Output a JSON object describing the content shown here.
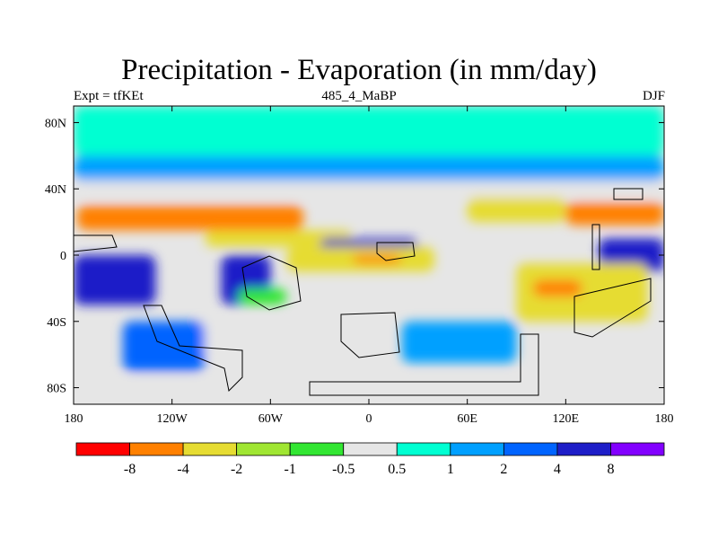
{
  "title": "Precipitation - Evaporation (in mm/day)",
  "left_string": "Expt = tfKEt",
  "center_string": "485_4_MaBP",
  "right_string": "DJF",
  "chart_data": {
    "type": "heatmap",
    "title": "Precipitation - Evaporation (in mm/day)",
    "variable": "Precipitation - Evaporation",
    "units": "mm/day",
    "experiment": "tfKEt",
    "period": "485_4_MaBP",
    "season": "DJF",
    "x_ticks": [
      "180",
      "120W",
      "60W",
      "0",
      "60E",
      "120E",
      "180"
    ],
    "x_values": [
      -180,
      -120,
      -60,
      0,
      60,
      120,
      180
    ],
    "y_ticks": [
      "80N",
      "40N",
      "0",
      "40S",
      "80S"
    ],
    "y_values": [
      80,
      40,
      0,
      -40,
      -80
    ],
    "xlim": [
      -180,
      180
    ],
    "ylim": [
      -90,
      90
    ],
    "colorbar": {
      "labels": [
        "-8",
        "-4",
        "-2",
        "-1",
        "-0.5",
        "0.5",
        "1",
        "2",
        "4",
        "8"
      ],
      "levels": [
        -8,
        -4,
        -2,
        -1,
        -0.5,
        0.5,
        1,
        2,
        4,
        8
      ],
      "colors": [
        "#ff0000",
        "#ff8000",
        "#e6dc32",
        "#a0e632",
        "#32e632",
        "#e6e6e6",
        "#00ffd2",
        "#00a0ff",
        "#0064ff",
        "#1e1ec8",
        "#8200ff"
      ]
    },
    "fields": [
      {
        "class": 6,
        "lon": [
          -180,
          180
        ],
        "lat": [
          60,
          90
        ]
      },
      {
        "class": 7,
        "lon": [
          -180,
          180
        ],
        "lat": [
          45,
          60
        ]
      },
      {
        "class": 5,
        "lon": [
          -180,
          180
        ],
        "lat": [
          35,
          45
        ]
      },
      {
        "class": 1,
        "lon": [
          -178,
          -40
        ],
        "lat": [
          15,
          30
        ]
      },
      {
        "class": 2,
        "lon": [
          -100,
          -10
        ],
        "lat": [
          5,
          15
        ]
      },
      {
        "class": 2,
        "lon": [
          60,
          120
        ],
        "lat": [
          20,
          35
        ]
      },
      {
        "class": 1,
        "lon": [
          120,
          180
        ],
        "lat": [
          18,
          32
        ]
      },
      {
        "class": 9,
        "lon": [
          -180,
          -130
        ],
        "lat": [
          -30,
          0
        ]
      },
      {
        "class": 9,
        "lon": [
          -90,
          -60
        ],
        "lat": [
          -30,
          0
        ]
      },
      {
        "class": 9,
        "lon": [
          -30,
          30
        ],
        "lat": [
          0,
          10
        ]
      },
      {
        "class": 9,
        "lon": [
          140,
          180
        ],
        "lat": [
          -10,
          10
        ]
      },
      {
        "class": 2,
        "lon": [
          -50,
          40
        ],
        "lat": [
          -10,
          5
        ]
      },
      {
        "class": 1,
        "lon": [
          -10,
          20
        ],
        "lat": [
          -5,
          0
        ]
      },
      {
        "class": 2,
        "lon": [
          90,
          170
        ],
        "lat": [
          -40,
          -5
        ]
      },
      {
        "class": 1,
        "lon": [
          100,
          130
        ],
        "lat": [
          -25,
          -15
        ]
      },
      {
        "class": 5,
        "lon": [
          -120,
          -40
        ],
        "lat": [
          -60,
          -40
        ]
      },
      {
        "class": 4,
        "lon": [
          -80,
          -50
        ],
        "lat": [
          -30,
          -20
        ]
      },
      {
        "class": 8,
        "lon": [
          -150,
          -100
        ],
        "lat": [
          -70,
          -40
        ]
      },
      {
        "class": 7,
        "lon": [
          20,
          90
        ],
        "lat": [
          -65,
          -40
        ]
      },
      {
        "class": 5,
        "lon": [
          -180,
          180
        ],
        "lat": [
          -90,
          -75
        ]
      }
    ]
  }
}
